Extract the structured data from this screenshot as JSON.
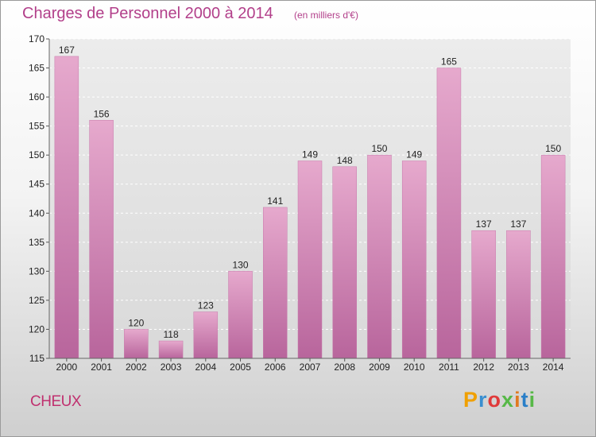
{
  "title": "Charges de Personnel 2000 à 2014",
  "unit": "(en milliers d'€)",
  "commune": "CHEUX",
  "logo": {
    "text": "Proxiti",
    "colors": [
      "#f0a000",
      "#3a8fd0",
      "#e03a3a",
      "#57b847",
      "#e07a20",
      "#2a7fc8",
      "#57b847"
    ]
  },
  "colors": {
    "bar": "#d98ab8",
    "bar_dark": "#b8609a",
    "title": "#b23f8a"
  },
  "chart_data": {
    "type": "bar",
    "categories": [
      "2000",
      "2001",
      "2002",
      "2003",
      "2004",
      "2005",
      "2006",
      "2007",
      "2008",
      "2009",
      "2010",
      "2011",
      "2012",
      "2013",
      "2014"
    ],
    "values": [
      167,
      156,
      120,
      118,
      123,
      130,
      141,
      149,
      148,
      150,
      149,
      165,
      137,
      137,
      150
    ],
    "ylim": [
      115,
      170
    ],
    "yticks": [
      115,
      120,
      125,
      130,
      135,
      140,
      145,
      150,
      155,
      160,
      165,
      170
    ],
    "grid": true
  }
}
